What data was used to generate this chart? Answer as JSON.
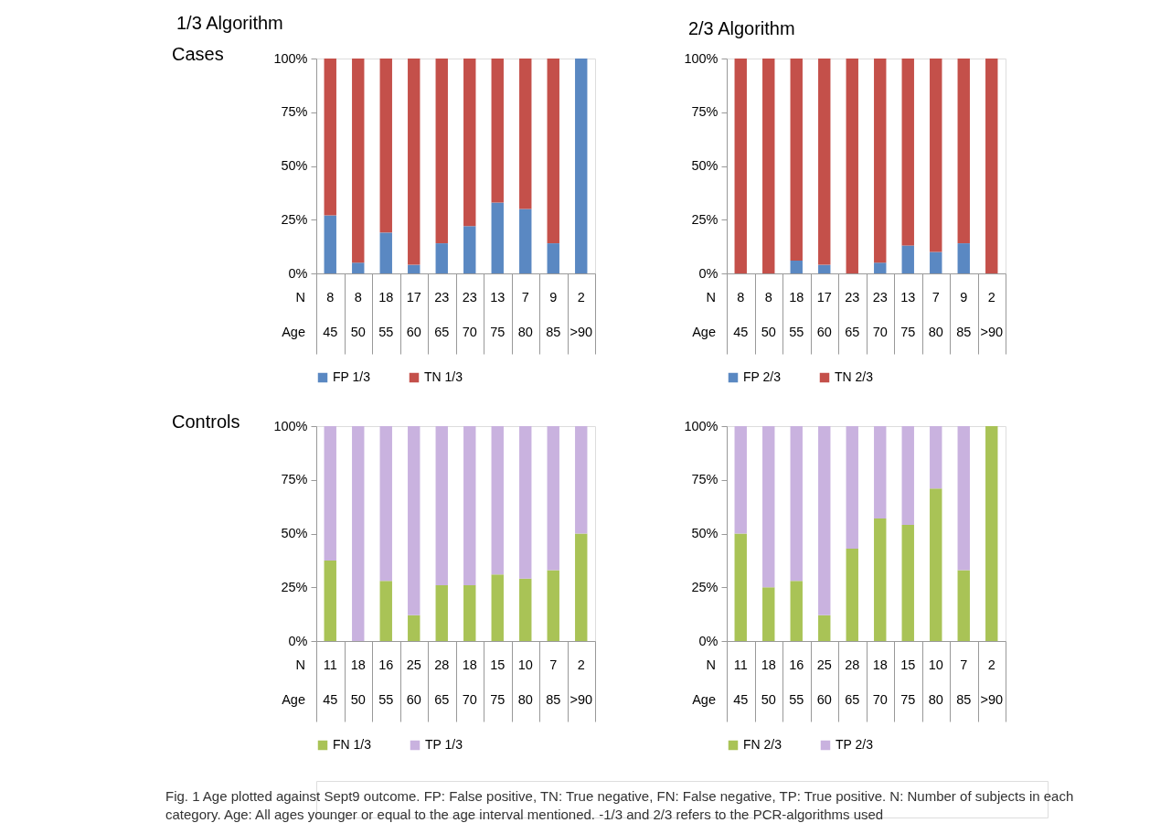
{
  "chart_data": [
    {
      "type": "bar",
      "title": "1/3 Algorithm",
      "ylabel": "Cases",
      "xlabel": "Age",
      "stacked": true,
      "legend": "bottom",
      "grid": false,
      "categories": [
        "45",
        "50",
        "55",
        "60",
        "65",
        "70",
        "75",
        "80",
        "85",
        ">90"
      ],
      "series": [
        {
          "name": "FP 1/3",
          "color": "#5a88c2",
          "values": [
            27,
            5,
            19,
            4,
            14,
            22,
            33,
            30,
            14,
            100
          ]
        },
        {
          "name": "TN 1/3",
          "color": "#c4504a",
          "values": [
            73,
            95,
            81,
            96,
            86,
            78,
            67,
            70,
            86,
            0
          ]
        }
      ],
      "ylim": [
        0,
        100
      ],
      "yticks": [
        {
          "value": 0,
          "label": "0%"
        },
        {
          "value": 25,
          "label": "25%"
        },
        {
          "value": 50,
          "label": "50%"
        },
        {
          "value": 75,
          "label": "75%"
        },
        {
          "value": 100,
          "label": "100%"
        }
      ],
      "annotations": [
        "N",
        "8",
        "8",
        "18",
        "17",
        "23",
        "23",
        "13",
        "7",
        "9",
        "2"
      ]
    },
    {
      "type": "bar",
      "title": "2/3 Algorithm",
      "xlabel": "Age",
      "stacked": true,
      "legend": "bottom",
      "grid": false,
      "categories": [
        "45",
        "50",
        "55",
        "60",
        "65",
        "70",
        "75",
        "80",
        "85",
        ">90"
      ],
      "series": [
        {
          "name": "FP 2/3",
          "color": "#5a88c2",
          "values": [
            0,
            0,
            6,
            4,
            0,
            5,
            13,
            10,
            14,
            0
          ]
        },
        {
          "name": "TN 2/3",
          "color": "#c4504a",
          "values": [
            100,
            100,
            94,
            96,
            100,
            95,
            87,
            90,
            86,
            100
          ]
        }
      ],
      "ylim": [
        0,
        100
      ],
      "yticks": [
        {
          "value": 0,
          "label": "0%"
        },
        {
          "value": 25,
          "label": "25%"
        },
        {
          "value": 50,
          "label": "50%"
        },
        {
          "value": 75,
          "label": "75%"
        },
        {
          "value": 100,
          "label": "100%"
        }
      ],
      "annotations": [
        "N",
        "8",
        "8",
        "18",
        "17",
        "23",
        "23",
        "13",
        "7",
        "9",
        "2"
      ]
    },
    {
      "type": "bar",
      "ylabel": "Controls",
      "xlabel": "Age",
      "stacked": true,
      "legend": "bottom",
      "grid": false,
      "categories": [
        "45",
        "50",
        "55",
        "60",
        "65",
        "70",
        "75",
        "80",
        "85",
        ">90"
      ],
      "series": [
        {
          "name": "FN 1/3",
          "color": "#a9c356",
          "values": [
            37.5,
            0,
            28,
            12,
            26,
            26,
            31,
            29,
            33,
            50
          ]
        },
        {
          "name": "TP 1/3",
          "color": "#c9b2df",
          "values": [
            62.5,
            100,
            72,
            88,
            74,
            74,
            69,
            71,
            67,
            50
          ]
        }
      ],
      "ylim": [
        0,
        100
      ],
      "yticks": [
        {
          "value": 0,
          "label": "0%"
        },
        {
          "value": 25,
          "label": "25%"
        },
        {
          "value": 50,
          "label": "50%"
        },
        {
          "value": 75,
          "label": "75%"
        },
        {
          "value": 100,
          "label": "100%"
        }
      ],
      "annotations": [
        "N",
        "11",
        "18",
        "16",
        "25",
        "28",
        "18",
        "15",
        "10",
        "7",
        "2"
      ]
    },
    {
      "type": "bar",
      "xlabel": "Age",
      "stacked": true,
      "legend": "bottom",
      "grid": false,
      "categories": [
        "45",
        "50",
        "55",
        "60",
        "65",
        "70",
        "75",
        "80",
        "85",
        ">90"
      ],
      "series": [
        {
          "name": "FN 2/3",
          "color": "#a9c356",
          "values": [
            50,
            25,
            28,
            12,
            43,
            57,
            54,
            71,
            33,
            100
          ]
        },
        {
          "name": "TP 2/3",
          "color": "#c9b2df",
          "values": [
            50,
            75,
            72,
            88,
            57,
            43,
            46,
            29,
            67,
            0
          ]
        }
      ],
      "ylim": [
        0,
        100
      ],
      "yticks": [
        {
          "value": 0,
          "label": "0%"
        },
        {
          "value": 25,
          "label": "25%"
        },
        {
          "value": 50,
          "label": "50%"
        },
        {
          "value": 75,
          "label": "75%"
        },
        {
          "value": 100,
          "label": "100%"
        }
      ],
      "annotations": [
        "N",
        "11",
        "18",
        "16",
        "25",
        "28",
        "18",
        "15",
        "10",
        "7",
        "2",
        "Fig. 1 Age plotted against Sept9 outcome. FP: False positive, TN: True negative, FN: False negative, TP: True positive. N: Number of subjects in each category. Age: All ages younger or equal to the age interval mentioned. -1/3 and 2/3 refers to the PCR-algorithms used"
      ]
    }
  ]
}
